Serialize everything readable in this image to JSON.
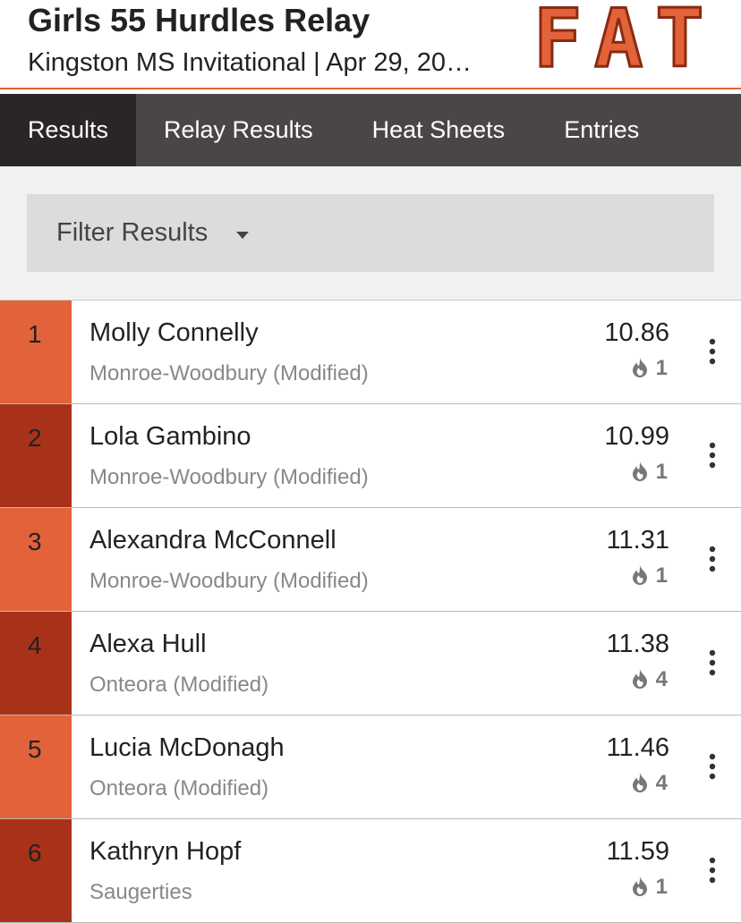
{
  "header": {
    "title": "Girls 55 Hurdles Relay",
    "subtitle": "Kingston MS Invitational | Apr 29, 20…",
    "logo": "FAT"
  },
  "tabs": [
    "Results",
    "Relay Results",
    "Heat Sheets",
    "Entries"
  ],
  "active_tab": 0,
  "filter": {
    "label": "Filter Results"
  },
  "results": [
    {
      "place": 1,
      "name": "Molly Connelly",
      "team": "Monroe-Woodbury (Modified)",
      "time": "10.86",
      "heat": 1
    },
    {
      "place": 2,
      "name": "Lola Gambino",
      "team": "Monroe-Woodbury (Modified)",
      "time": "10.99",
      "heat": 1
    },
    {
      "place": 3,
      "name": "Alexandra McConnell",
      "team": "Monroe-Woodbury (Modified)",
      "time": "11.31",
      "heat": 1
    },
    {
      "place": 4,
      "name": "Alexa Hull",
      "team": "Onteora (Modified)",
      "time": "11.38",
      "heat": 4
    },
    {
      "place": 5,
      "name": "Lucia McDonagh",
      "team": "Onteora (Modified)",
      "time": "11.46",
      "heat": 4
    },
    {
      "place": 6,
      "name": "Kathryn Hopf",
      "team": "Saugerties",
      "time": "11.59",
      "heat": 1
    }
  ]
}
